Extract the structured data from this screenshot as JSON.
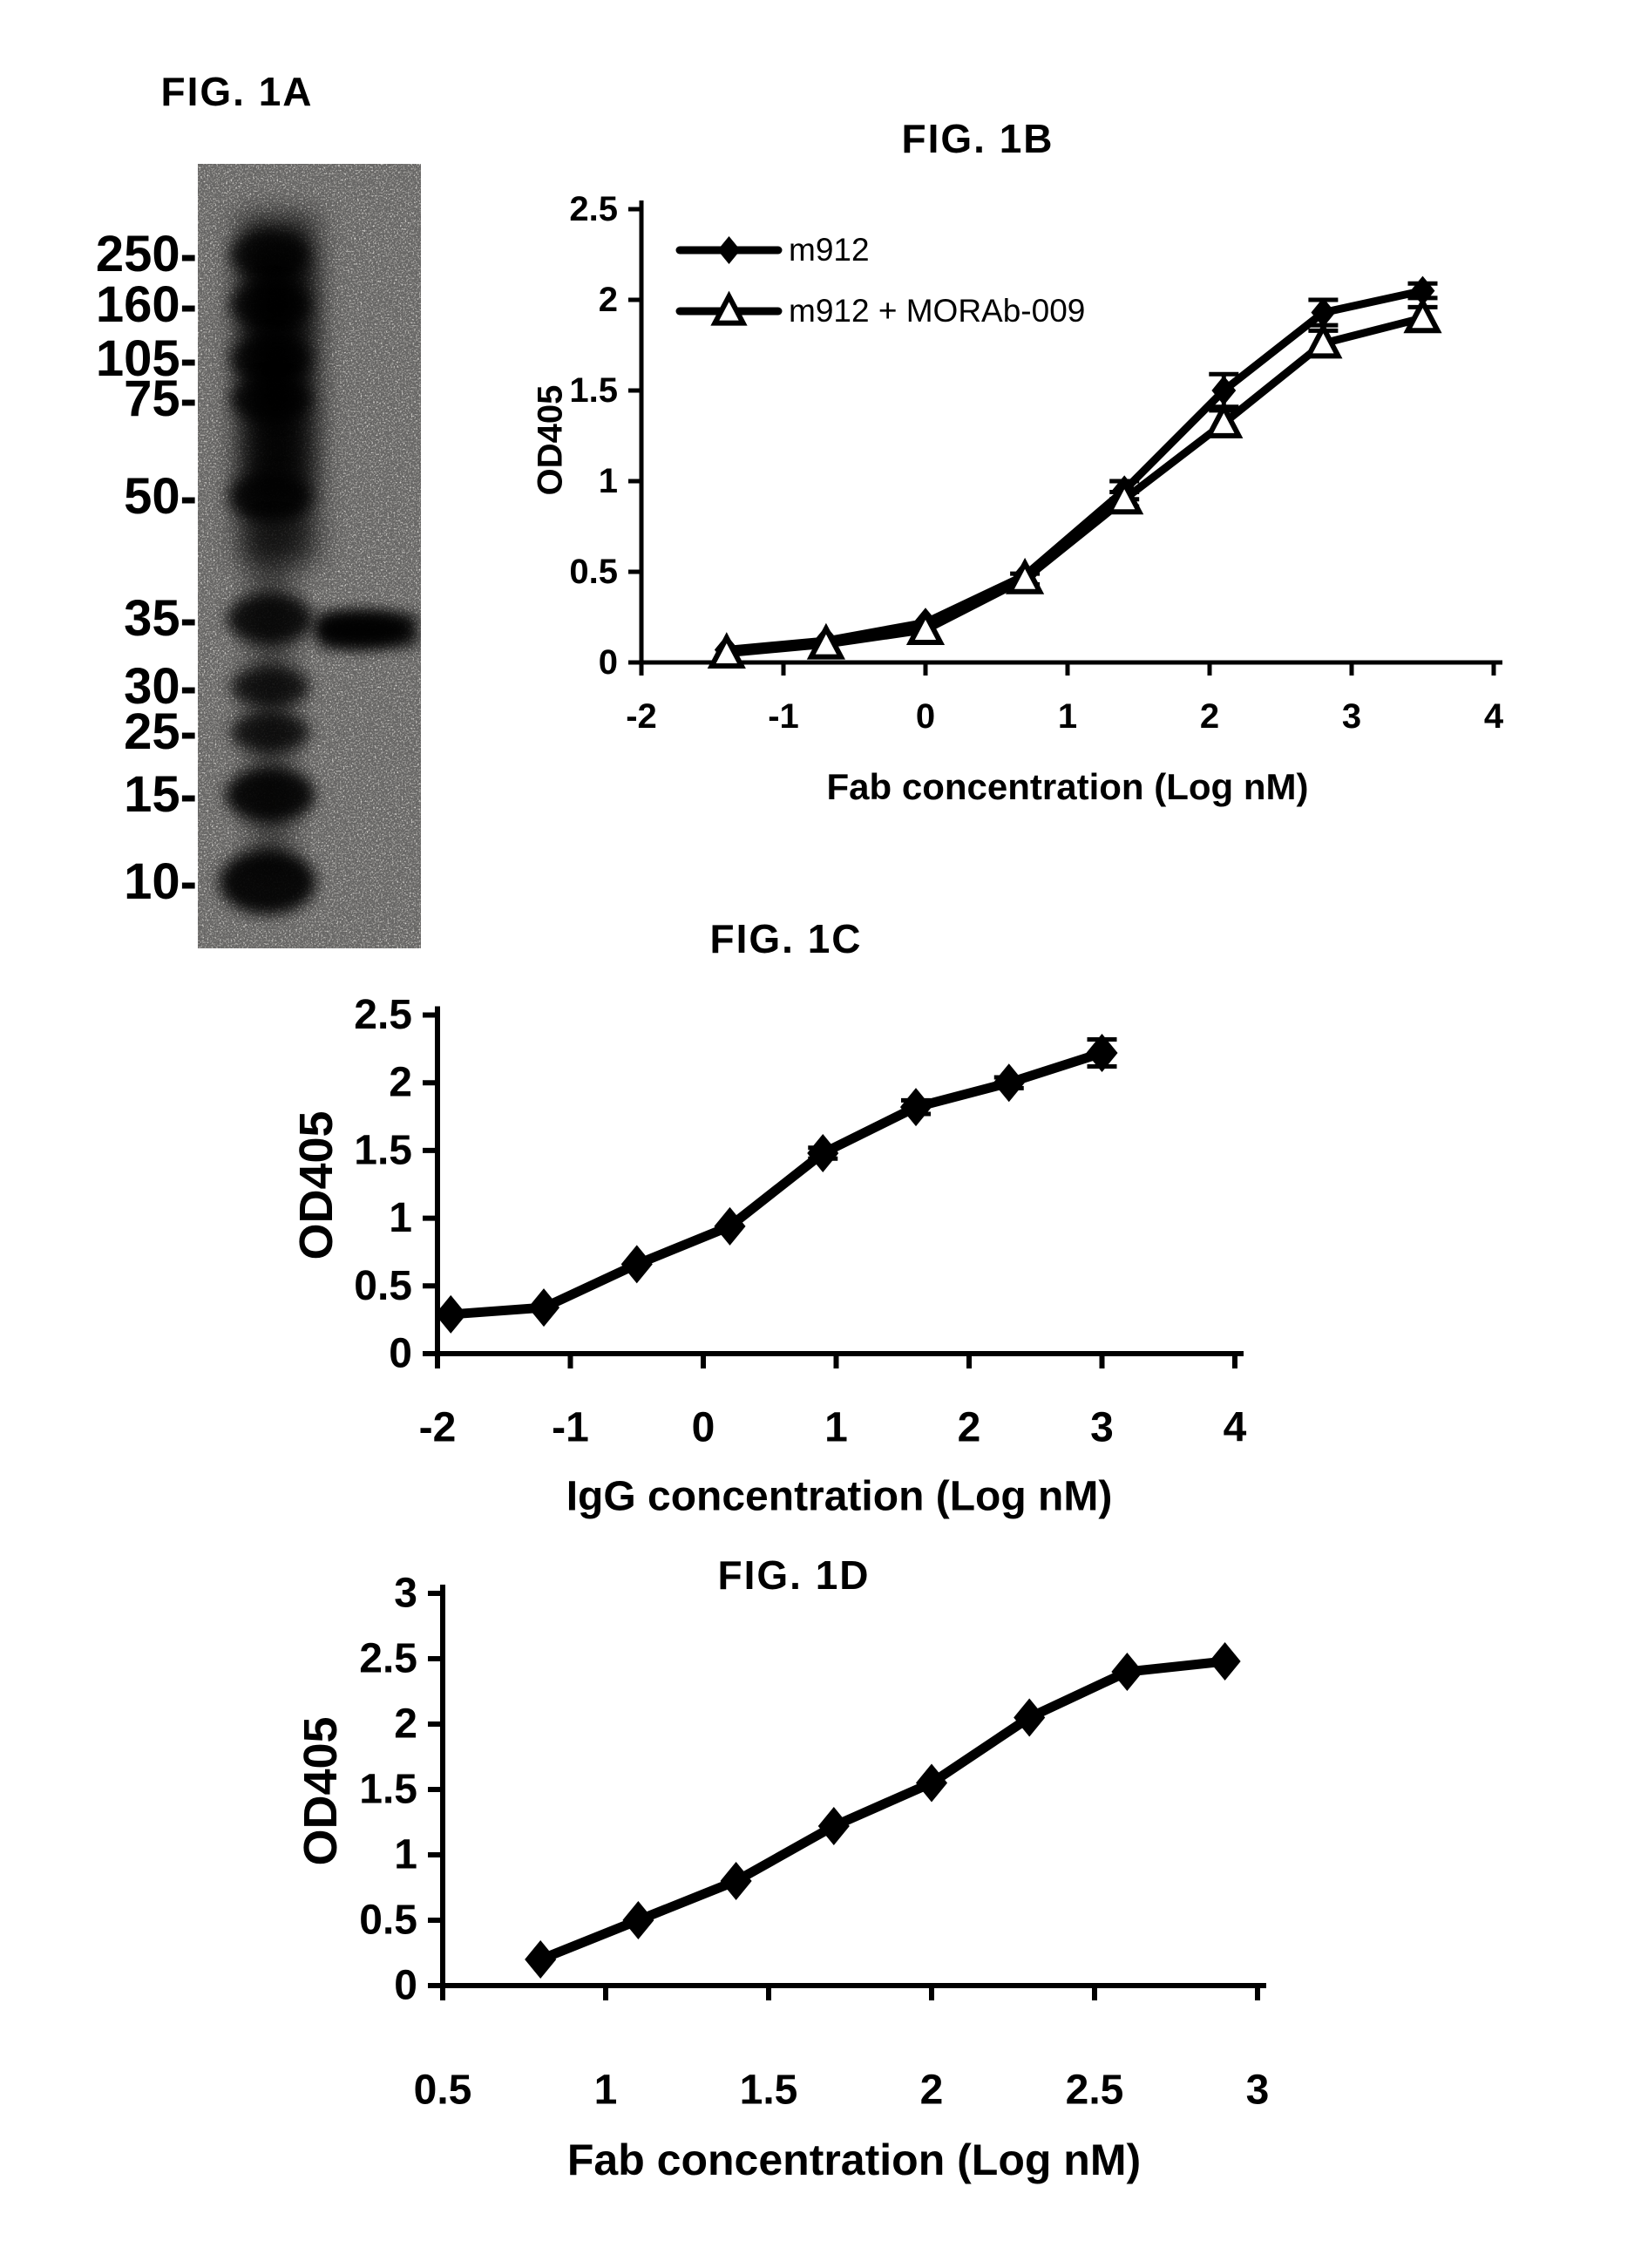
{
  "figures": {
    "a": "FIG. 1A",
    "b": "FIG. 1B",
    "c": "FIG. 1C",
    "d": "FIG. 1D"
  },
  "gel": {
    "description": "western-blot-lane-with-molecular-weight-ladder",
    "markers": [
      "250-",
      "160-",
      "105-",
      "75-",
      "50-",
      "35-",
      "30-",
      "25-",
      "15-",
      "10-"
    ],
    "marker_kda": [
      250,
      160,
      105,
      75,
      50,
      35,
      30,
      25,
      15,
      10
    ],
    "sample_band_kda": 35
  },
  "chart_data": [
    {
      "id": "figB",
      "type": "line",
      "title": "FIG. 1B",
      "xlabel": "Fab concentration (Log nM)",
      "ylabel": "OD405",
      "xlim": [
        -2,
        4
      ],
      "ylim": [
        0,
        2.5
      ],
      "xticks": [
        -2,
        -1,
        0,
        1,
        2,
        3,
        4
      ],
      "yticks": [
        0,
        0.5,
        1,
        1.5,
        2,
        2.5
      ],
      "grid": false,
      "legend_position": "top-left-inside",
      "x": [
        -1.4,
        -0.7,
        0,
        0.7,
        1.4,
        2.1,
        2.8,
        3.5
      ],
      "series": [
        {
          "name": "m912",
          "marker": "diamond",
          "values": [
            0.07,
            0.12,
            0.22,
            0.48,
            0.95,
            1.5,
            1.93,
            2.05
          ],
          "errors": [
            0,
            0,
            0,
            0,
            0.05,
            0.09,
            0.07,
            0.04
          ]
        },
        {
          "name": "m912 + MORAb-009",
          "marker": "triangle-open",
          "values": [
            0.05,
            0.1,
            0.18,
            0.46,
            0.9,
            1.32,
            1.76,
            1.9
          ],
          "errors": [
            0,
            0,
            0,
            0.03,
            0.04,
            0.07,
            0.07,
            0.06
          ]
        }
      ]
    },
    {
      "id": "figC",
      "type": "line",
      "title": "FIG. 1C",
      "xlabel": "IgG concentration (Log nM)",
      "ylabel": "OD405",
      "xlim": [
        -2,
        4
      ],
      "ylim": [
        0,
        2.5
      ],
      "xticks": [
        -2,
        -1,
        0,
        1,
        2,
        3,
        4
      ],
      "yticks": [
        0,
        0.5,
        1,
        1.5,
        2,
        2.5
      ],
      "grid": false,
      "legend_position": "none",
      "x": [
        -1.9,
        -1.2,
        -0.5,
        0.2,
        0.9,
        1.6,
        2.3,
        3.0
      ],
      "series": [
        {
          "name": "m912 IgG",
          "marker": "diamond",
          "values": [
            0.29,
            0.34,
            0.66,
            0.94,
            1.48,
            1.82,
            2.0,
            2.22
          ],
          "errors": [
            0,
            0,
            0,
            0,
            0.04,
            0.05,
            0.04,
            0.1
          ]
        }
      ]
    },
    {
      "id": "figD",
      "type": "line",
      "title": "FIG. 1D",
      "xlabel": "Fab concentration (Log nM)",
      "ylabel": "OD405",
      "xlim": [
        0.5,
        3
      ],
      "ylim": [
        0,
        3
      ],
      "xticks": [
        0.5,
        1,
        1.5,
        2,
        2.5,
        3
      ],
      "yticks": [
        0,
        0.5,
        1,
        1.5,
        2,
        2.5,
        3
      ],
      "grid": false,
      "legend_position": "none",
      "x": [
        0.8,
        1.1,
        1.4,
        1.7,
        2.0,
        2.3,
        2.6,
        2.9
      ],
      "series": [
        {
          "name": "m912 Fab",
          "marker": "diamond",
          "values": [
            0.2,
            0.5,
            0.8,
            1.22,
            1.55,
            2.05,
            2.4,
            2.48
          ],
          "errors": [
            0,
            0,
            0,
            0,
            0,
            0,
            0,
            0
          ]
        }
      ]
    }
  ]
}
